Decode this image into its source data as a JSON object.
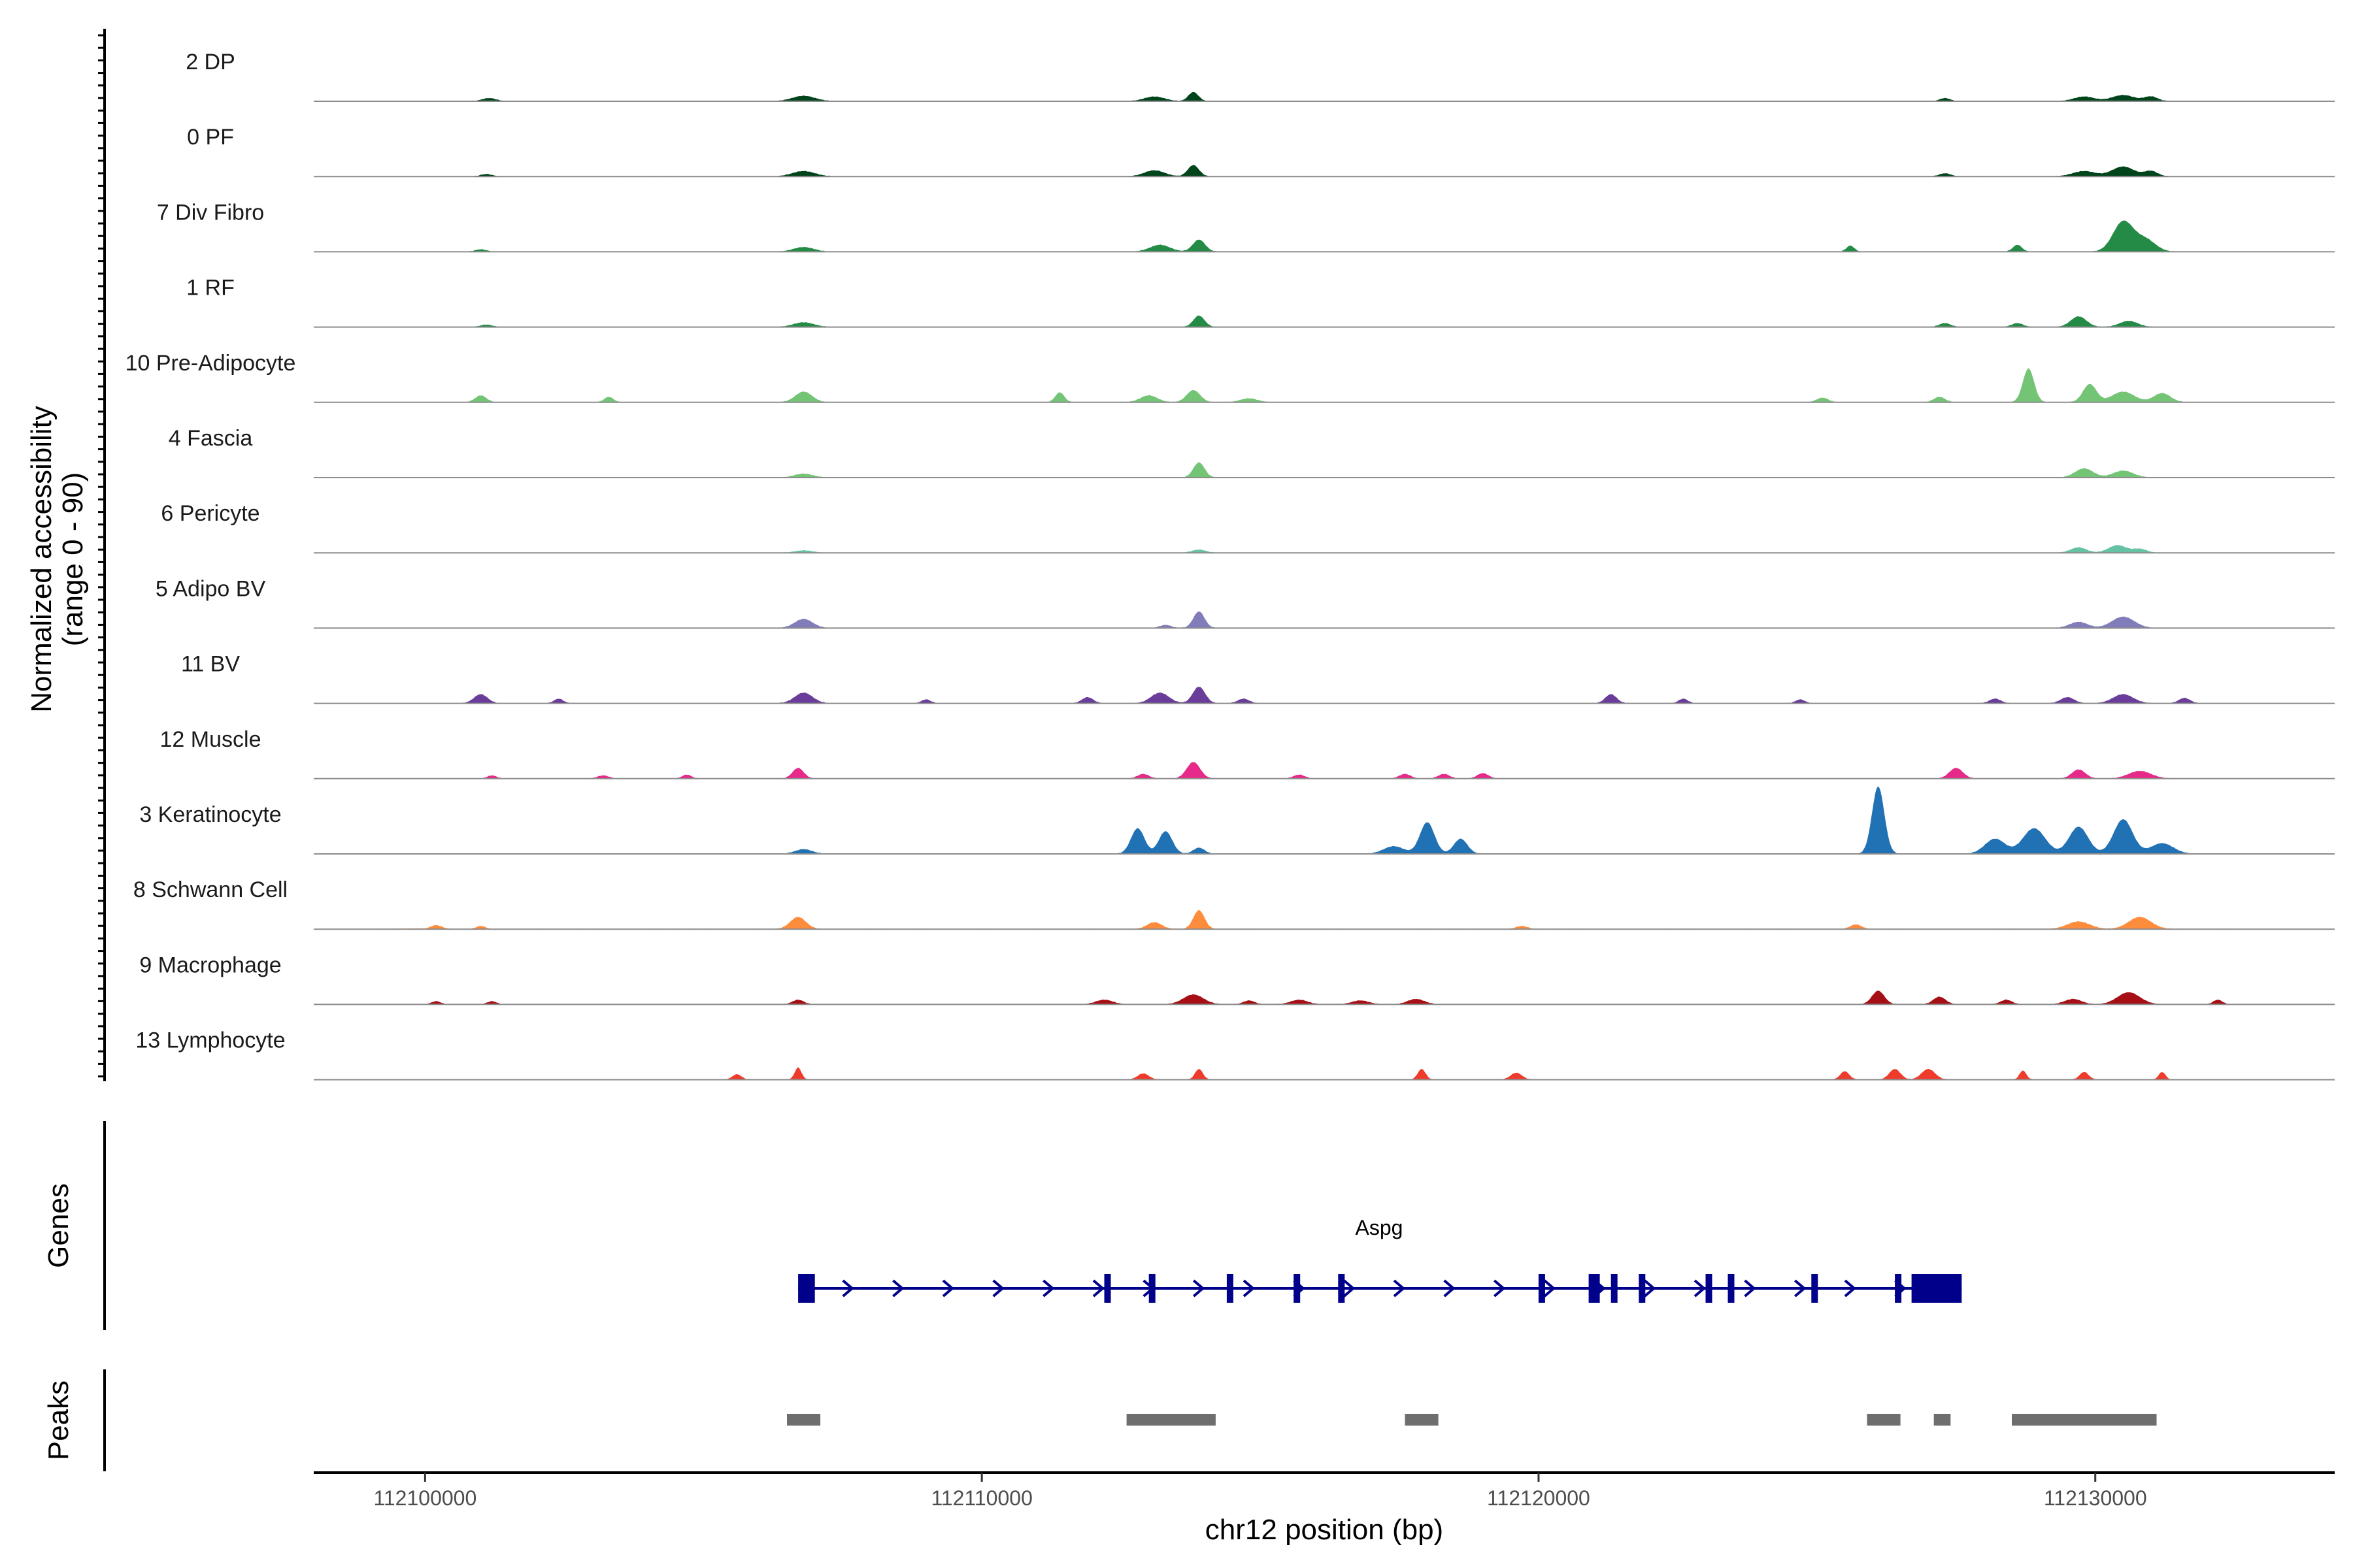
{
  "chart_data": {
    "type": "area",
    "title": "",
    "ylabel": "Normalized accessibility\n(range 0 - 90)",
    "ylabel_line1": "Normalized accessibility",
    "ylabel_line2": "(range 0 - 90)",
    "ylim": [
      0,
      90
    ],
    "xlabel": "chr12 position (bp)",
    "xlim": [
      112098000,
      112134300
    ],
    "x_ticks": [
      112100000,
      112110000,
      112120000,
      112130000
    ],
    "x_tick_labels": [
      "112100000",
      "112110000",
      "112120000",
      "112130000"
    ],
    "grid": false,
    "legend": "none",
    "tracks": [
      {
        "name": "2 DP",
        "color": "#00441b",
        "peaks": [
          [
            112101150,
            4,
            120
          ],
          [
            112106800,
            7,
            200
          ],
          [
            112113100,
            6,
            180
          ],
          [
            112113800,
            12,
            90
          ],
          [
            112127300,
            4,
            90
          ],
          [
            112129800,
            6,
            180
          ],
          [
            112130500,
            8,
            200
          ],
          [
            112131000,
            6,
            120
          ]
        ]
      },
      {
        "name": "0 PF",
        "color": "#00441b",
        "peaks": [
          [
            112101100,
            3,
            100
          ],
          [
            112106800,
            7,
            200
          ],
          [
            112113100,
            8,
            180
          ],
          [
            112113800,
            15,
            100
          ],
          [
            112127300,
            4,
            100
          ],
          [
            112129800,
            7,
            200
          ],
          [
            112130500,
            13,
            200
          ],
          [
            112131000,
            7,
            120
          ]
        ]
      },
      {
        "name": "7 Div Fibro",
        "color": "#238b45",
        "peaks": [
          [
            112101000,
            3,
            100
          ],
          [
            112106800,
            6,
            180
          ],
          [
            112113200,
            9,
            180
          ],
          [
            112113900,
            16,
            110
          ],
          [
            112125600,
            8,
            70
          ],
          [
            112128600,
            9,
            80
          ],
          [
            112130500,
            40,
            180
          ],
          [
            112130900,
            16,
            180
          ]
        ]
      },
      {
        "name": "1 RF",
        "color": "#238b45",
        "peaks": [
          [
            112101100,
            3,
            100
          ],
          [
            112106800,
            6,
            180
          ],
          [
            112113900,
            15,
            100
          ],
          [
            112127300,
            5,
            100
          ],
          [
            112128600,
            5,
            100
          ],
          [
            112129700,
            14,
            140
          ],
          [
            112130600,
            8,
            160
          ]
        ]
      },
      {
        "name": "10 Pre-Adipocyte",
        "color": "#74c476",
        "peaks": [
          [
            112101000,
            9,
            100
          ],
          [
            112103300,
            7,
            80
          ],
          [
            112106800,
            14,
            150
          ],
          [
            112111400,
            13,
            80
          ],
          [
            112113000,
            9,
            150
          ],
          [
            112113800,
            16,
            120
          ],
          [
            112114800,
            5,
            150
          ],
          [
            112125100,
            6,
            100
          ],
          [
            112127200,
            7,
            100
          ],
          [
            112128800,
            45,
            100
          ],
          [
            112129900,
            24,
            120
          ],
          [
            112130500,
            14,
            200
          ],
          [
            112131200,
            12,
            150
          ]
        ]
      },
      {
        "name": "4 Fascia",
        "color": "#74c476",
        "peaks": [
          [
            112106800,
            5,
            160
          ],
          [
            112113900,
            20,
            100
          ],
          [
            112129800,
            12,
            160
          ],
          [
            112130500,
            9,
            180
          ]
        ]
      },
      {
        "name": "6 Pericyte",
        "color": "#66c2a4",
        "peaks": [
          [
            112106800,
            3,
            150
          ],
          [
            112113900,
            4,
            120
          ],
          [
            112129700,
            7,
            140
          ],
          [
            112130400,
            10,
            160
          ],
          [
            112130800,
            5,
            120
          ]
        ]
      },
      {
        "name": "5 Adipo BV",
        "color": "#807dba",
        "peaks": [
          [
            112106800,
            12,
            160
          ],
          [
            112113300,
            4,
            100
          ],
          [
            112113900,
            22,
            100
          ],
          [
            112129700,
            8,
            160
          ],
          [
            112130500,
            15,
            200
          ]
        ]
      },
      {
        "name": "11 BV",
        "color": "#6a3d9a",
        "peaks": [
          [
            112101000,
            12,
            120
          ],
          [
            112102400,
            6,
            80
          ],
          [
            112106800,
            14,
            160
          ],
          [
            112109000,
            5,
            80
          ],
          [
            112111900,
            8,
            100
          ],
          [
            112113200,
            14,
            160
          ],
          [
            112113900,
            22,
            110
          ],
          [
            112114700,
            6,
            100
          ],
          [
            112121300,
            12,
            100
          ],
          [
            112122600,
            6,
            80
          ],
          [
            112124700,
            5,
            80
          ],
          [
            112128200,
            6,
            100
          ],
          [
            112129500,
            8,
            120
          ],
          [
            112130500,
            12,
            180
          ],
          [
            112131600,
            7,
            100
          ]
        ]
      },
      {
        "name": "12 Muscle",
        "color": "#e7298a",
        "peaks": [
          [
            112101200,
            4,
            80
          ],
          [
            112103200,
            4,
            100
          ],
          [
            112104700,
            5,
            80
          ],
          [
            112106700,
            14,
            100
          ],
          [
            112112900,
            6,
            100
          ],
          [
            112113800,
            22,
            120
          ],
          [
            112115700,
            5,
            100
          ],
          [
            112117600,
            6,
            100
          ],
          [
            112118300,
            6,
            100
          ],
          [
            112119000,
            7,
            100
          ],
          [
            112127500,
            14,
            120
          ],
          [
            112129700,
            12,
            120
          ],
          [
            112130800,
            10,
            200
          ]
        ]
      },
      {
        "name": "3 Keratinocyte",
        "color": "#2171b5",
        "peaks": [
          [
            112106800,
            6,
            150
          ],
          [
            112112800,
            34,
            120
          ],
          [
            112113300,
            30,
            120
          ],
          [
            112113900,
            8,
            100
          ],
          [
            112117400,
            10,
            180
          ],
          [
            112118000,
            42,
            130
          ],
          [
            112118600,
            20,
            120
          ],
          [
            112126100,
            90,
            110
          ],
          [
            112128200,
            20,
            180
          ],
          [
            112128900,
            34,
            200
          ],
          [
            112129700,
            36,
            170
          ],
          [
            112130500,
            46,
            170
          ],
          [
            112131200,
            14,
            200
          ]
        ]
      },
      {
        "name": "8 Schwann Cell",
        "color": "#fd8d3c",
        "peaks": [
          [
            112100200,
            5,
            100
          ],
          [
            112101000,
            4,
            80
          ],
          [
            112106700,
            16,
            140
          ],
          [
            112113100,
            9,
            130
          ],
          [
            112113900,
            25,
            100
          ],
          [
            112119700,
            4,
            100
          ],
          [
            112125700,
            6,
            100
          ],
          [
            112129700,
            10,
            200
          ],
          [
            112130800,
            16,
            200
          ]
        ]
      },
      {
        "name": "9 Macrophage",
        "color": "#a50f15",
        "peaks": [
          [
            112100200,
            4,
            80
          ],
          [
            112101200,
            4,
            80
          ],
          [
            112106700,
            6,
            100
          ],
          [
            112112200,
            6,
            150
          ],
          [
            112113800,
            13,
            180
          ],
          [
            112114800,
            5,
            100
          ],
          [
            112115700,
            6,
            150
          ],
          [
            112116800,
            5,
            150
          ],
          [
            112117800,
            7,
            150
          ],
          [
            112126100,
            18,
            110
          ],
          [
            112127200,
            10,
            110
          ],
          [
            112128400,
            6,
            100
          ],
          [
            112129600,
            7,
            150
          ],
          [
            112130600,
            16,
            200
          ],
          [
            112132200,
            6,
            80
          ]
        ]
      },
      {
        "name": "13 Lymphocyte",
        "color": "#ef3b2c",
        "peaks": [
          [
            112105600,
            7,
            80
          ],
          [
            112106700,
            16,
            60
          ],
          [
            112112900,
            8,
            100
          ],
          [
            112113900,
            14,
            70
          ],
          [
            112117900,
            14,
            70
          ],
          [
            112119600,
            9,
            100
          ],
          [
            112125500,
            11,
            80
          ],
          [
            112126400,
            14,
            100
          ],
          [
            112127000,
            14,
            120
          ],
          [
            112128700,
            12,
            60
          ],
          [
            112129800,
            10,
            80
          ],
          [
            112131200,
            10,
            60
          ]
        ]
      }
    ],
    "genes": {
      "panel_label": "Genes",
      "name": "Aspg",
      "color": "#00008b",
      "strand": "+",
      "start": 112106700,
      "end": 112127600,
      "exons": [
        [
          112106700,
          112107000
        ],
        [
          112112200,
          112112300
        ],
        [
          112113000,
          112113100
        ],
        [
          112114400,
          112114500
        ],
        [
          112115600,
          112115650
        ],
        [
          112116400,
          112116500
        ],
        [
          112120000,
          112120100
        ],
        [
          112120900,
          112121100
        ],
        [
          112121300,
          112121400
        ],
        [
          112121800,
          112121900
        ],
        [
          112123000,
          112123100
        ],
        [
          112123400,
          112123500
        ],
        [
          112124900,
          112125000
        ],
        [
          112126400,
          112126500
        ],
        [
          112126700,
          112127600
        ]
      ]
    },
    "peaks_track": {
      "panel_label": "Peaks",
      "color": "#6e6e6e",
      "regions": [
        [
          112106500,
          112107100
        ],
        [
          112112600,
          112114200
        ],
        [
          112117600,
          112118200
        ],
        [
          112125900,
          112126500
        ],
        [
          112127100,
          112127400
        ],
        [
          112128500,
          112131100
        ]
      ]
    }
  }
}
